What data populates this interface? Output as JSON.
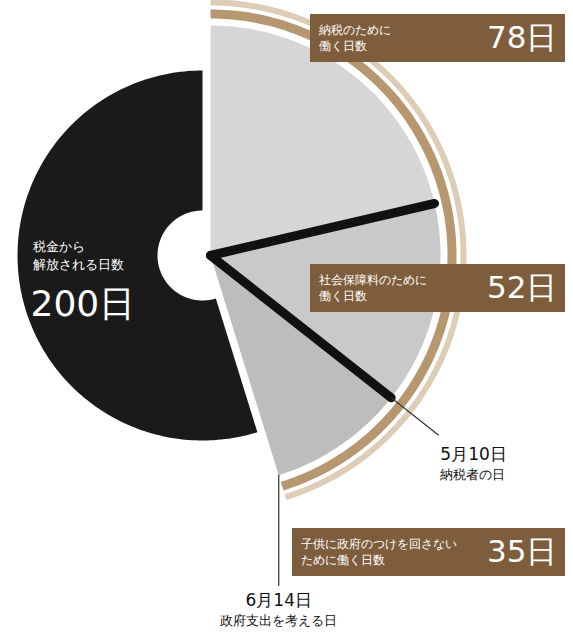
{
  "chart_data": {
    "type": "donut",
    "categories": [
      "納税のために働く日数",
      "社会保障料のために働く日数",
      "子供に政府のつけを回さないために働く日数",
      "税金から解放される日数"
    ],
    "values": [
      78,
      52,
      35,
      200
    ],
    "value_labels": [
      "78日",
      "52日",
      "35日",
      "200日"
    ],
    "colors": [
      "#d6d6d6",
      "#c9c9c9",
      "#bdbdbd",
      "#1a1a1a"
    ],
    "data_labels": true,
    "annotations": [
      {
        "label": "5月10日",
        "text": "納税者の日"
      },
      {
        "label": "6月14日",
        "text": "政府支出を考える日"
      }
    ]
  }
}
